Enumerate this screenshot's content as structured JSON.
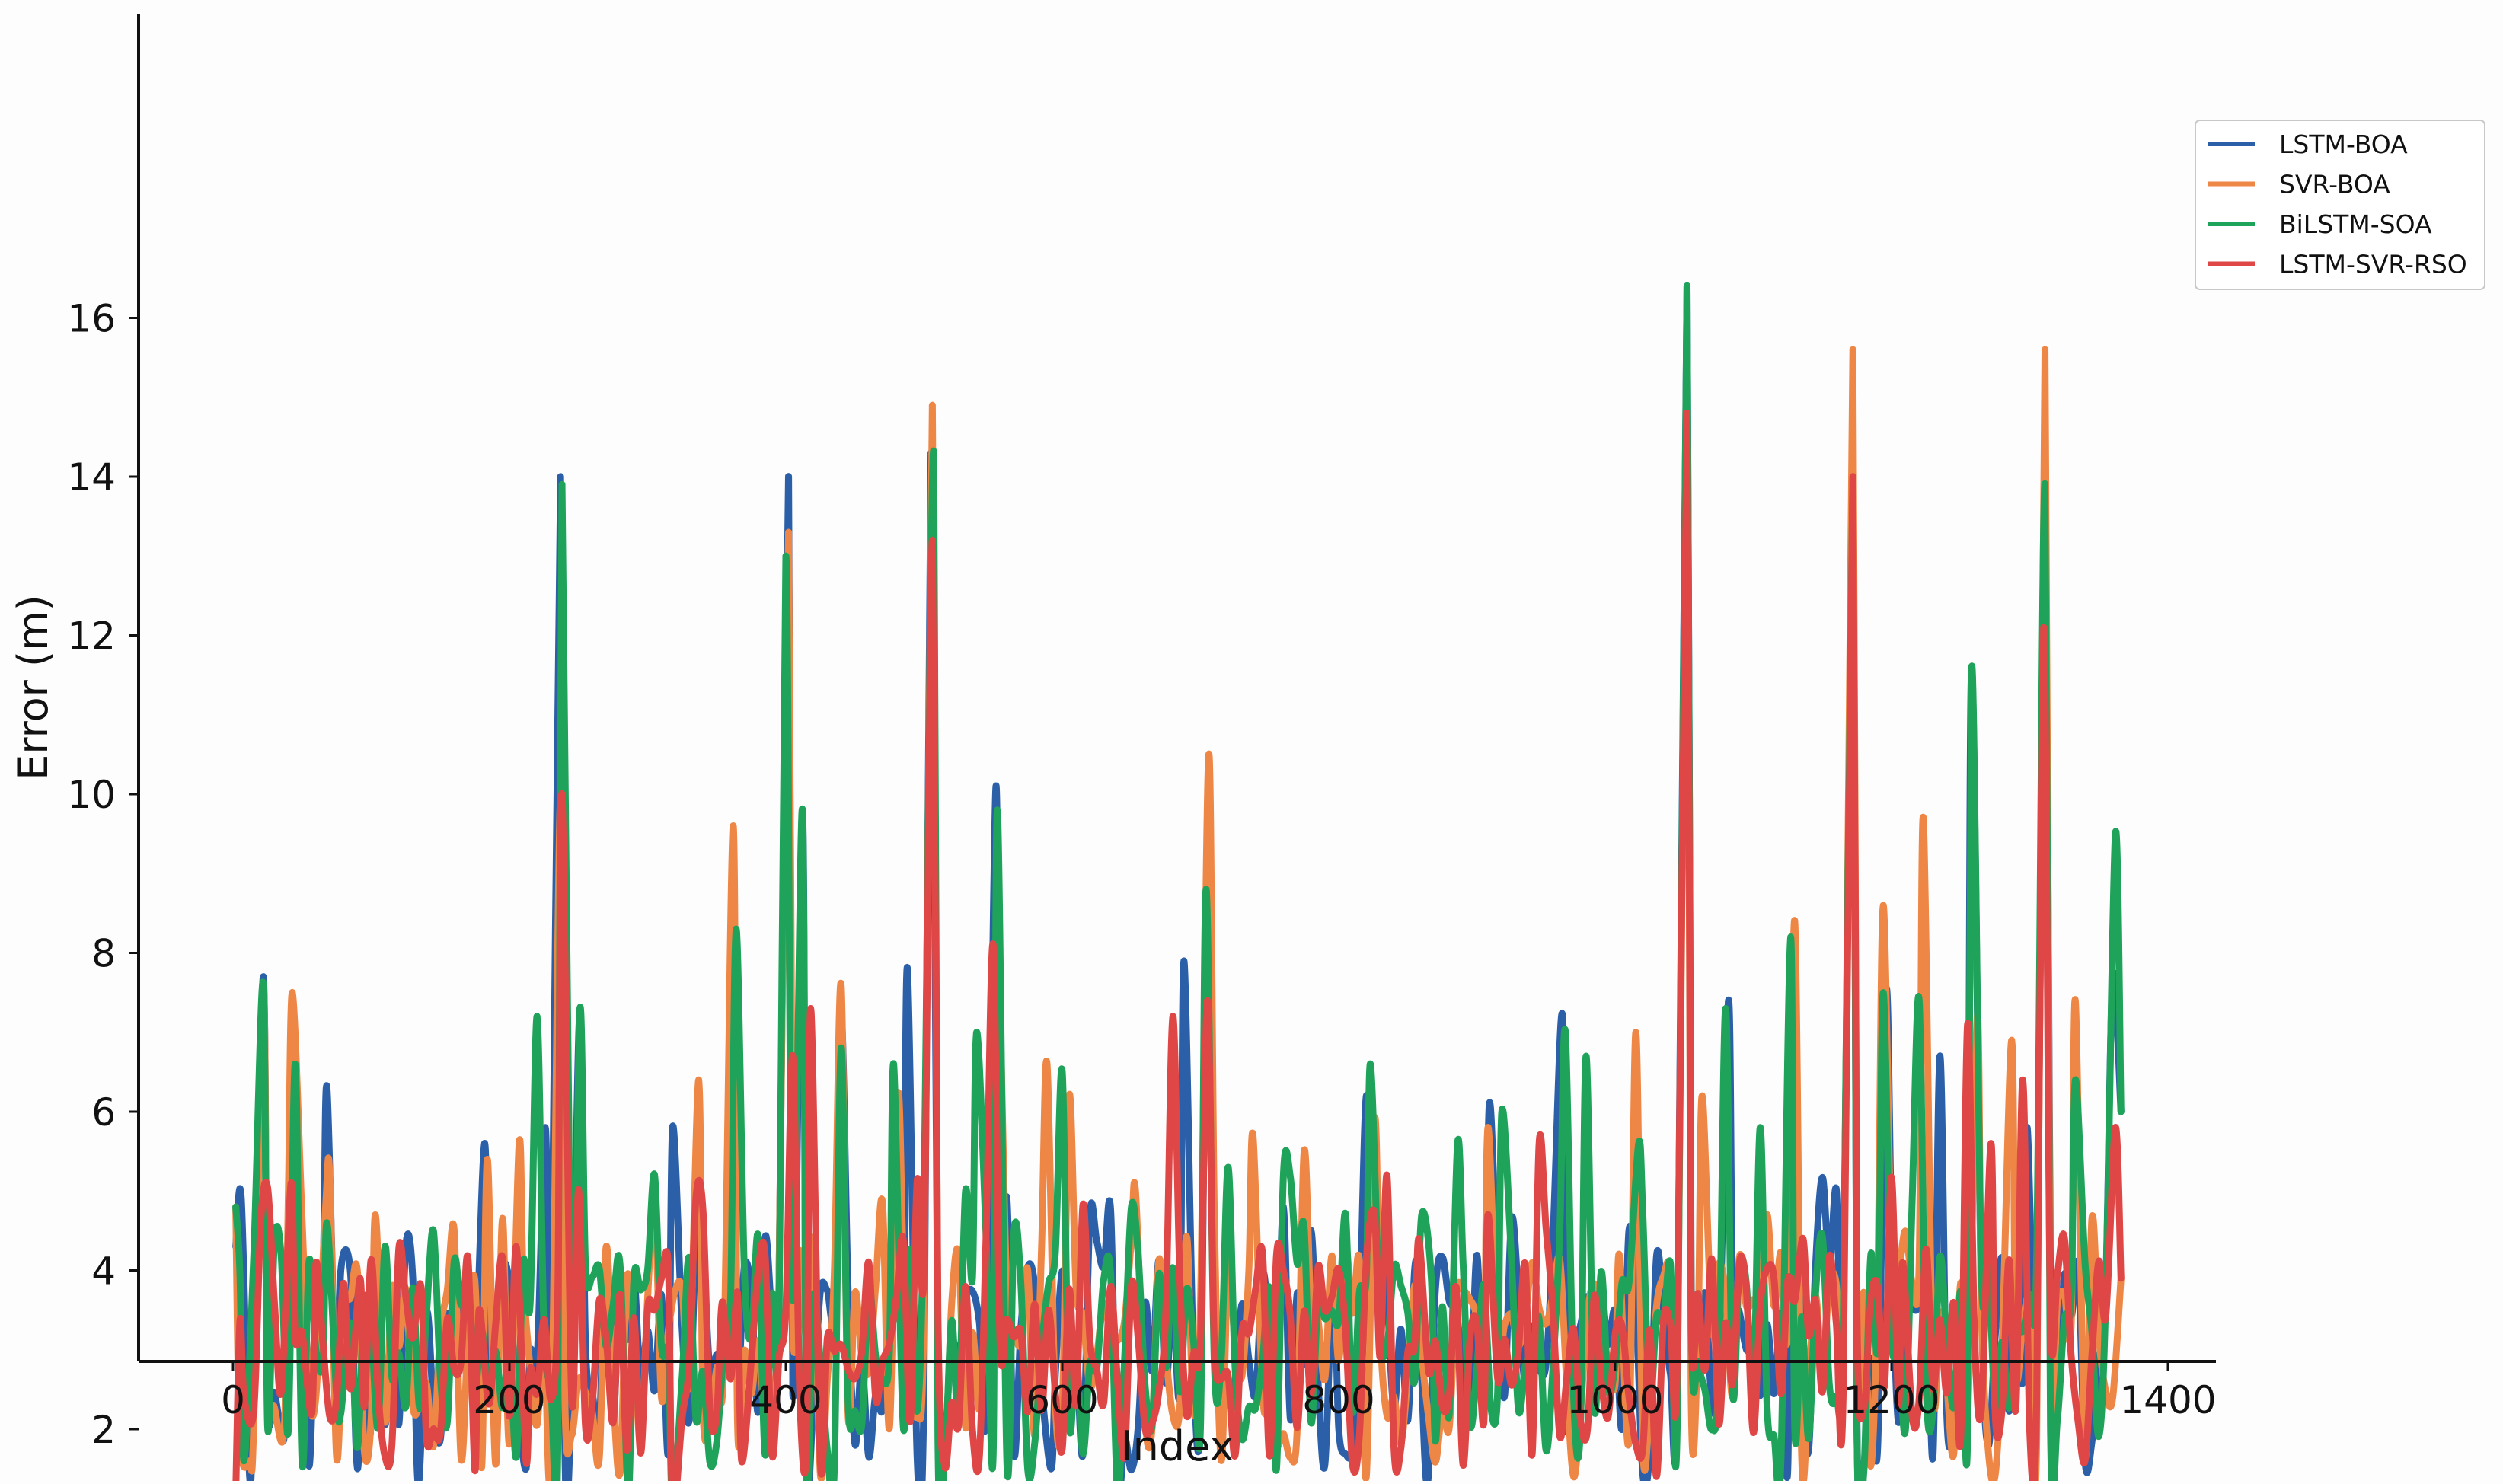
{
  "chart_data": {
    "type": "line",
    "title": "",
    "xlabel": "Index",
    "ylabel": "Error (m)",
    "xlim": [
      -70,
      1400
    ],
    "ylim": [
      0.6,
      17.2
    ],
    "xticks": [
      0,
      200,
      400,
      600,
      800,
      1000,
      1200,
      1400
    ],
    "yticks": [
      2,
      4,
      6,
      8,
      10,
      12,
      14,
      16
    ],
    "xtick_labels": [
      "0",
      "200",
      "400",
      "600",
      "800",
      "1000",
      "1200",
      "1400"
    ],
    "ytick_labels": [
      "2",
      "4",
      "6",
      "8",
      "10",
      "12",
      "14",
      "16"
    ],
    "grid": false,
    "legend_position": "top-right",
    "x_count": 1367,
    "series": [
      {
        "name": "LSTM-BOA",
        "color": "#2b5fa8",
        "peaks": [
          [
            2,
            4.3
          ],
          [
            6,
            4.9
          ],
          [
            12,
            1.4
          ],
          [
            22,
            7.7
          ],
          [
            37,
            1.9
          ],
          [
            44,
            6.5
          ],
          [
            59,
            3.2
          ],
          [
            68,
            6.3
          ],
          [
            78,
            4.0
          ],
          [
            99,
            1.9
          ],
          [
            134,
            1.3
          ],
          [
            182,
            5.6
          ],
          [
            212,
            1.5
          ],
          [
            226,
            5.8
          ],
          [
            237,
            14.0
          ],
          [
            251,
            7.3
          ],
          [
            269,
            3.8
          ],
          [
            318,
            5.8
          ],
          [
            335,
            4.3
          ],
          [
            362,
            8.3
          ],
          [
            402,
            14.0
          ],
          [
            412,
            9.8
          ],
          [
            440,
            7.2
          ],
          [
            488,
            7.8
          ],
          [
            505,
            14.3
          ],
          [
            552,
            10.1
          ],
          [
            592,
            1.5
          ],
          [
            620,
            4.7
          ],
          [
            640,
            1.2
          ],
          [
            688,
            7.9
          ],
          [
            705,
            8.8
          ],
          [
            760,
            4.8
          ],
          [
            796,
            4.0
          ],
          [
            820,
            6.2
          ],
          [
            858,
            3.6
          ],
          [
            864,
            1.3
          ],
          [
            909,
            6.1
          ],
          [
            962,
            7.2
          ],
          [
            1010,
            4.5
          ],
          [
            1052,
            16.4
          ],
          [
            1082,
            7.4
          ],
          [
            1128,
            8.2
          ],
          [
            1172,
            14.0
          ],
          [
            1196,
            7.5
          ],
          [
            1235,
            6.7
          ],
          [
            1258,
            11.6
          ],
          [
            1298,
            5.8
          ],
          [
            1311,
            13.9
          ],
          [
            1340,
            1.6
          ],
          [
            1360,
            7.7
          ],
          [
            1366,
            6.0
          ]
        ]
      },
      {
        "name": "SVR-BOA",
        "color": "#ee8645",
        "peaks": [
          [
            2,
            4.8
          ],
          [
            12,
            1.6
          ],
          [
            22,
            7.5
          ],
          [
            37,
            2.0
          ],
          [
            43,
            7.5
          ],
          [
            67,
            4.8
          ],
          [
            103,
            4.7
          ],
          [
            184,
            5.4
          ],
          [
            207,
            5.6
          ],
          [
            237,
            10.0
          ],
          [
            285,
            3.9
          ],
          [
            337,
            6.4
          ],
          [
            362,
            9.6
          ],
          [
            402,
            13.3
          ],
          [
            440,
            7.6
          ],
          [
            481,
            6.2
          ],
          [
            506,
            14.9
          ],
          [
            553,
            8.1
          ],
          [
            589,
            6.6
          ],
          [
            605,
            6.2
          ],
          [
            653,
            5.0
          ],
          [
            706,
            10.5
          ],
          [
            738,
            5.7
          ],
          [
            775,
            5.5
          ],
          [
            826,
            5.9
          ],
          [
            908,
            5.8
          ],
          [
            970,
            1.4
          ],
          [
            1003,
            4.2
          ],
          [
            1015,
            7.0
          ],
          [
            1052,
            14.8
          ],
          [
            1063,
            6.2
          ],
          [
            1130,
            8.4
          ],
          [
            1172,
            15.6
          ],
          [
            1194,
            8.6
          ],
          [
            1223,
            9.7
          ],
          [
            1262,
            7.2
          ],
          [
            1287,
            6.9
          ],
          [
            1311,
            15.6
          ],
          [
            1333,
            7.4
          ],
          [
            1366,
            3.9
          ]
        ]
      },
      {
        "name": "BiLSTM-SOA",
        "color": "#1fa35a",
        "peaks": [
          [
            2,
            4.8
          ],
          [
            8,
            1.6
          ],
          [
            22,
            7.6
          ],
          [
            45,
            6.6
          ],
          [
            60,
            3.0
          ],
          [
            68,
            4.6
          ],
          [
            78,
            2.2
          ],
          [
            110,
            4.3
          ],
          [
            145,
            4.5
          ],
          [
            220,
            7.2
          ],
          [
            238,
            13.9
          ],
          [
            251,
            7.3
          ],
          [
            286,
            1.2
          ],
          [
            305,
            5.2
          ],
          [
            318,
            1.1
          ],
          [
            364,
            8.3
          ],
          [
            400,
            13.0
          ],
          [
            412,
            9.8
          ],
          [
            440,
            6.8
          ],
          [
            478,
            6.6
          ],
          [
            507,
            14.3
          ],
          [
            538,
            7.0
          ],
          [
            553,
            9.8
          ],
          [
            575,
            1.5
          ],
          [
            600,
            6.5
          ],
          [
            640,
            1.2
          ],
          [
            704,
            8.8
          ],
          [
            720,
            5.3
          ],
          [
            760,
            5.2
          ],
          [
            823,
            6.6
          ],
          [
            867,
            3.9
          ],
          [
            886,
            5.6
          ],
          [
            918,
            6.0
          ],
          [
            964,
            7.0
          ],
          [
            979,
            6.7
          ],
          [
            1017,
            5.6
          ],
          [
            1052,
            16.4
          ],
          [
            1080,
            7.3
          ],
          [
            1105,
            5.8
          ],
          [
            1127,
            8.2
          ],
          [
            1172,
            13.9
          ],
          [
            1194,
            7.5
          ],
          [
            1220,
            7.4
          ],
          [
            1258,
            11.6
          ],
          [
            1311,
            13.9
          ],
          [
            1333,
            6.4
          ],
          [
            1362,
            9.5
          ],
          [
            1366,
            6.0
          ]
        ]
      },
      {
        "name": "LSTM-SVR-RSO",
        "color": "#df4646",
        "peaks": [
          [
            2,
            1.2
          ],
          [
            8,
            2.4
          ],
          [
            20,
            4.6
          ],
          [
            42,
            5.1
          ],
          [
            57,
            2.2
          ],
          [
            92,
            3.9
          ],
          [
            136,
            3.8
          ],
          [
            178,
            3.5
          ],
          [
            212,
            1.6
          ],
          [
            238,
            10.0
          ],
          [
            280,
            3.7
          ],
          [
            318,
            1.0
          ],
          [
            354,
            3.6
          ],
          [
            368,
            1.6
          ],
          [
            405,
            6.7
          ],
          [
            418,
            7.3
          ],
          [
            460,
            4.1
          ],
          [
            506,
            13.2
          ],
          [
            550,
            8.1
          ],
          [
            590,
            3.5
          ],
          [
            640,
            2.6
          ],
          [
            680,
            7.2
          ],
          [
            705,
            7.4
          ],
          [
            760,
            4.0
          ],
          [
            790,
            3.5
          ],
          [
            826,
            4.7
          ],
          [
            858,
            4.4
          ],
          [
            908,
            4.7
          ],
          [
            945,
            5.6
          ],
          [
            1000,
            3.2
          ],
          [
            1052,
            14.8
          ],
          [
            1090,
            4.1
          ],
          [
            1136,
            4.4
          ],
          [
            1172,
            14.0
          ],
          [
            1208,
            4.1
          ],
          [
            1255,
            7.1
          ],
          [
            1272,
            5.6
          ],
          [
            1295,
            6.4
          ],
          [
            1310,
            12.1
          ],
          [
            1340,
            1.6
          ],
          [
            1362,
            5.8
          ],
          [
            1366,
            3.9
          ]
        ]
      }
    ]
  }
}
